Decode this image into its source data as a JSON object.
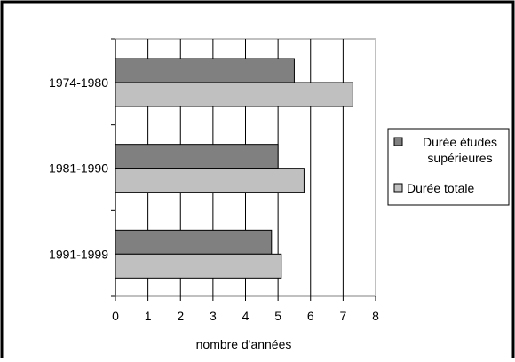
{
  "chart_data": {
    "type": "bar",
    "orientation": "horizontal",
    "title": "",
    "xlabel": "nombre d'années",
    "ylabel": "",
    "categories": [
      "1974-1980",
      "1981-1990",
      "1991-1999"
    ],
    "xlim": [
      0,
      8
    ],
    "xticks": [
      "0",
      "1",
      "2",
      "3",
      "4",
      "5",
      "6",
      "7",
      "8"
    ],
    "grid": "vertical",
    "legend_position": "right",
    "series": [
      {
        "name": "Durée études supérieures",
        "values": [
          5.5,
          5.0,
          4.8
        ],
        "color": "#808080"
      },
      {
        "name": "Durée totale",
        "values": [
          7.3,
          5.8,
          5.1
        ],
        "color": "#c0c0c0"
      }
    ],
    "legend_labels": [
      [
        "Durée études",
        "supérieures"
      ],
      [
        "Durée totale"
      ]
    ]
  }
}
